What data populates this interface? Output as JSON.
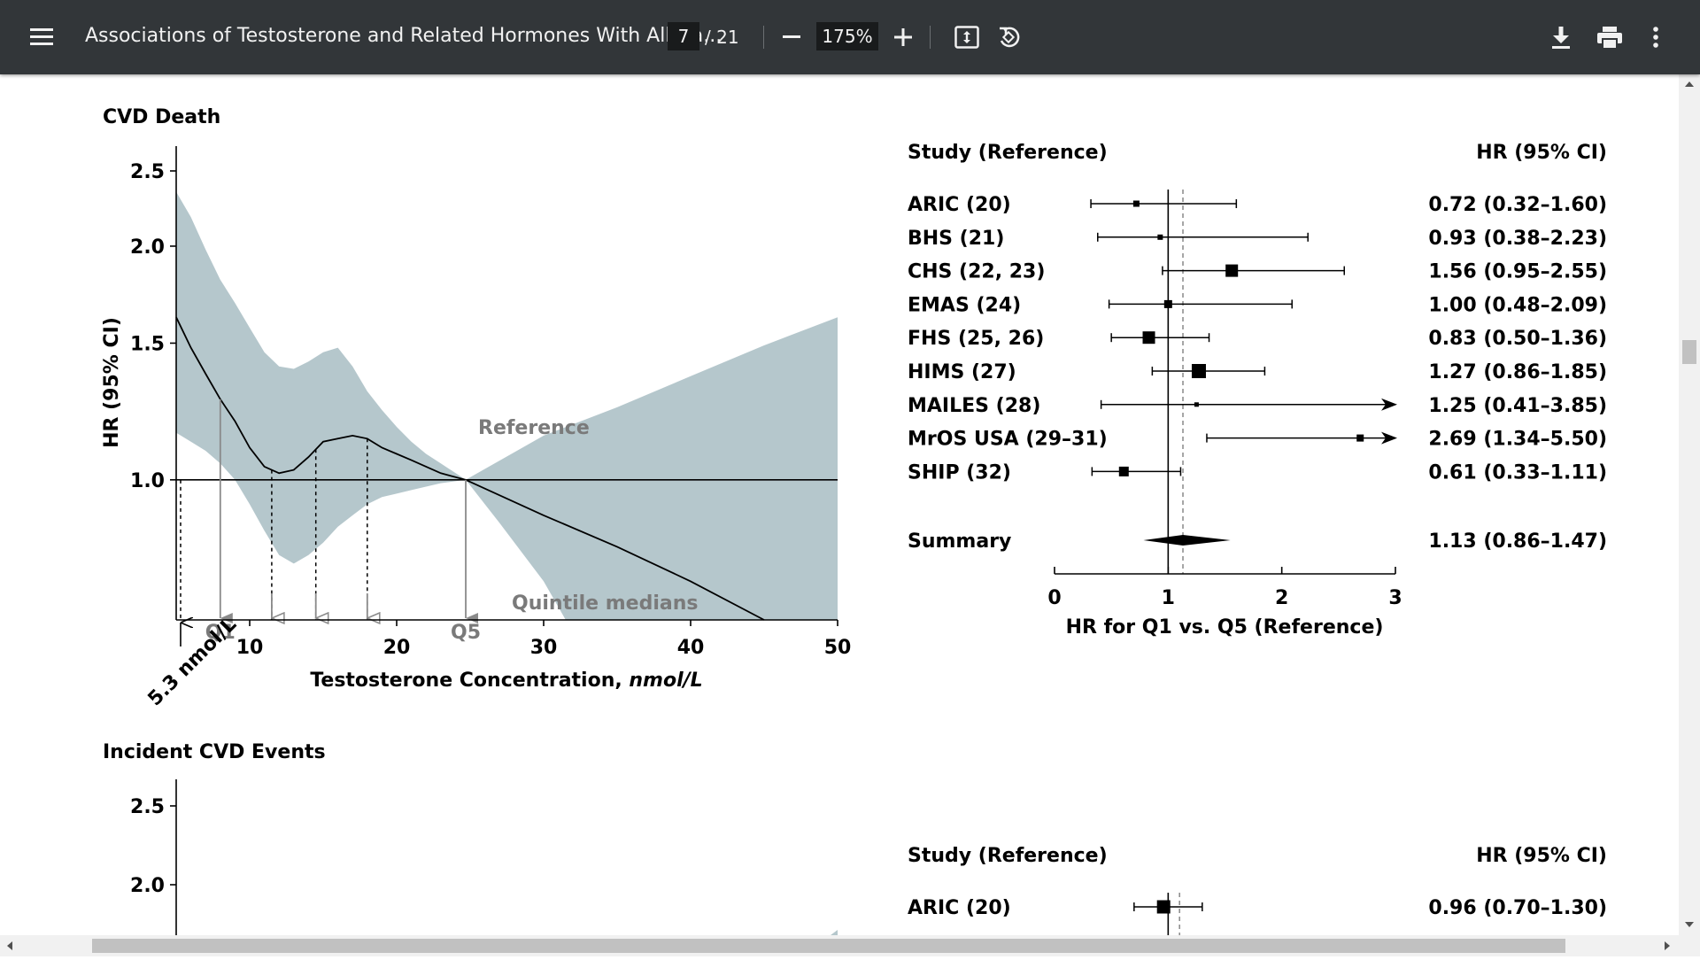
{
  "toolbar": {
    "title": "Associations of Testosterone and Related Hormones With All-Ca...",
    "page_current": "7",
    "page_total": "/ 21",
    "zoom": "175%",
    "icons": [
      "menu-icon",
      "zoom-out-icon",
      "zoom-in-icon",
      "fit-page-icon",
      "rotate-icon",
      "download-icon",
      "print-icon",
      "more-vert-icon"
    ]
  },
  "panels": {
    "cvd_death": {
      "title": "CVD Death",
      "chart_data": {
        "type": "line",
        "xlabel": "Testosterone Concentration, nmol/L",
        "ylabel": "HR (95% CI)",
        "xlim": [
          5,
          50
        ],
        "ylim": [
          0.66,
          2.5
        ],
        "x_ticks": [
          10,
          20,
          30,
          40,
          50
        ],
        "y_ticks": [
          1.0,
          1.5,
          2.0,
          2.5
        ],
        "x_tick_labels": [
          "10",
          "20",
          "30",
          "40",
          "50"
        ],
        "y_tick_labels": [
          "1.0",
          "1.5",
          "2.0",
          "2.5"
        ],
        "reference_line": 1.0,
        "curve": {
          "x": [
            5,
            6,
            7,
            8,
            9,
            10,
            11,
            12,
            13,
            14,
            15,
            16,
            17,
            18,
            19,
            20,
            21,
            22,
            23,
            24.7,
            30,
            35,
            40,
            45
          ],
          "y": [
            1.62,
            1.48,
            1.37,
            1.27,
            1.19,
            1.1,
            1.04,
            1.02,
            1.03,
            1.07,
            1.12,
            1.13,
            1.14,
            1.13,
            1.1,
            1.08,
            1.06,
            1.04,
            1.02,
            1.0,
            0.9,
            0.82,
            0.74,
            0.66
          ]
        },
        "ci_upper": {
          "x": [
            5,
            6,
            7,
            8,
            9,
            10,
            11,
            12,
            13,
            14,
            15,
            16,
            17,
            18,
            19,
            20,
            21,
            22,
            23,
            24.7,
            30,
            35,
            40,
            45,
            50
          ],
          "y": [
            2.35,
            2.18,
            1.98,
            1.81,
            1.69,
            1.57,
            1.46,
            1.4,
            1.39,
            1.42,
            1.46,
            1.48,
            1.4,
            1.3,
            1.23,
            1.17,
            1.12,
            1.08,
            1.05,
            1.0,
            1.14,
            1.24,
            1.36,
            1.49,
            1.62
          ]
        },
        "ci_lower": {
          "x": [
            5,
            6,
            7,
            8,
            9,
            10,
            11,
            12,
            13,
            14,
            15,
            16,
            17,
            18,
            19,
            20,
            21,
            22,
            23,
            24.7,
            27,
            30,
            31.5,
            50
          ],
          "y": [
            1.15,
            1.12,
            1.09,
            1.05,
            1.0,
            0.93,
            0.86,
            0.8,
            0.78,
            0.8,
            0.83,
            0.87,
            0.9,
            0.93,
            0.95,
            0.96,
            0.97,
            0.98,
            0.99,
            1.0,
            0.88,
            0.74,
            0.66,
            0.66
          ]
        },
        "annotations": {
          "reference_label": "Reference",
          "quintile_label": "Quintile medians",
          "threshold_label": "5.3 nmol/L",
          "q1_label": "Q1",
          "q5_label": "Q5"
        },
        "threshold_x": 5.3,
        "quintile_medians": [
          8,
          11.5,
          14.5,
          18,
          24.7
        ]
      },
      "forest_data": {
        "type": "forest",
        "header_left": "Study (Reference)",
        "header_right": "HR (95% CI)",
        "xlabel": "HR for Q1 vs. Q5 (Reference)",
        "xlim": [
          0,
          3
        ],
        "x_ticks": [
          "0",
          "1",
          "2",
          "3"
        ],
        "studies": [
          {
            "name": "ARIC (20)",
            "hr": 0.72,
            "lo": 0.32,
            "hi": 1.6,
            "text": "0.72 (0.32–1.60)",
            "w": 7
          },
          {
            "name": "BHS (21)",
            "hr": 0.93,
            "lo": 0.38,
            "hi": 2.23,
            "text": "0.93 (0.38–2.23)",
            "w": 6
          },
          {
            "name": "CHS (22, 23)",
            "hr": 1.56,
            "lo": 0.95,
            "hi": 2.55,
            "text": "1.56 (0.95–2.55)",
            "w": 14
          },
          {
            "name": "EMAS (24)",
            "hr": 1.0,
            "lo": 0.48,
            "hi": 2.09,
            "text": "1.00 (0.48–2.09)",
            "w": 9
          },
          {
            "name": "FHS (25, 26)",
            "hr": 0.83,
            "lo": 0.5,
            "hi": 1.36,
            "text": "0.83 (0.50–1.36)",
            "w": 14
          },
          {
            "name": "HIMS (27)",
            "hr": 1.27,
            "lo": 0.86,
            "hi": 1.85,
            "text": "1.27 (0.86–1.85)",
            "w": 16
          },
          {
            "name": "MAILES (28)",
            "hr": 1.25,
            "lo": 0.41,
            "hi": 3.85,
            "text": "1.25 (0.41–3.85)",
            "w": 5
          },
          {
            "name": "MrOS USA (29–31)",
            "hr": 2.69,
            "lo": 1.34,
            "hi": 5.5,
            "text": "2.69 (1.34–5.50)",
            "w": 8
          },
          {
            "name": "SHIP (32)",
            "hr": 0.61,
            "lo": 0.33,
            "hi": 1.11,
            "text": "0.61 (0.33–1.11)",
            "w": 11
          }
        ],
        "summary": {
          "name": "Summary",
          "hr": 1.13,
          "lo": 0.86,
          "hi": 1.47,
          "text": "1.13 (0.86–1.47)"
        }
      }
    },
    "incident_cvd": {
      "title": "Incident CVD Events",
      "chart_data": {
        "type": "line",
        "ylim": [
          0.66,
          2.5
        ],
        "y_ticks": [
          2.0,
          2.5
        ],
        "y_tick_labels": [
          "2.0",
          "2.5"
        ]
      },
      "forest_data": {
        "type": "forest",
        "header_left": "Study (Reference)",
        "header_right": "HR (95% CI)",
        "xlim": [
          0,
          3
        ],
        "studies": [
          {
            "name": "ARIC (20)",
            "hr": 0.96,
            "lo": 0.7,
            "hi": 1.3,
            "text": "0.96 (0.70–1.30)",
            "w": 15
          }
        ]
      }
    }
  },
  "colors": {
    "toolbar_bg": "#323639",
    "ci_band": "#b5c7cc",
    "arrow_gray": "#8a8a8a"
  }
}
